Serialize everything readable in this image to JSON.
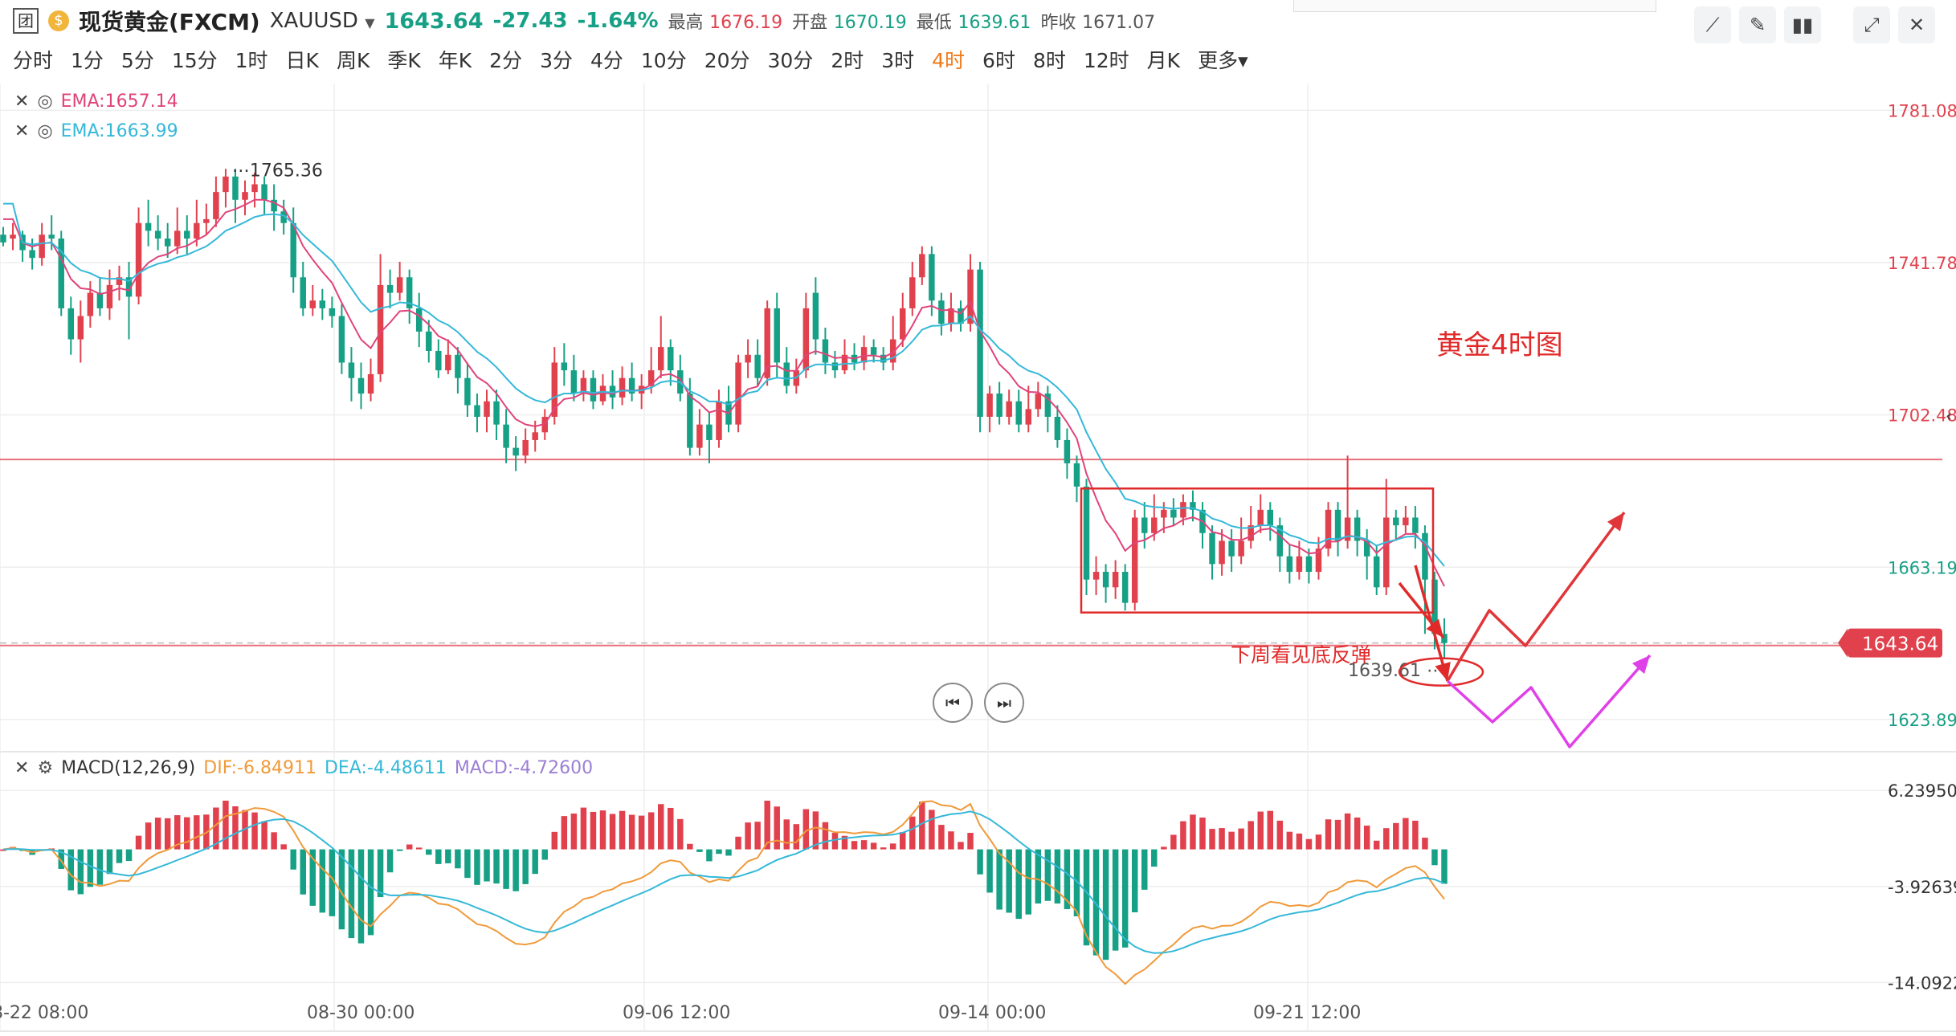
{
  "header": {
    "logo_char": "团",
    "coin_char": "$",
    "title": "现货黄金(FXCM)",
    "symbol": "XAUUSD",
    "last": "1643.64",
    "change": "-27.43",
    "change_pct": "-1.64%",
    "high_label": "最高",
    "high": "1676.19",
    "open_label": "开盘",
    "open": "1670.19",
    "low_label": "最低",
    "low": "1639.61",
    "prev_label": "昨收",
    "prev": "1671.07"
  },
  "timeframes": [
    "分时",
    "1分",
    "5分",
    "15分",
    "1时",
    "日K",
    "周K",
    "季K",
    "年K",
    "2分",
    "3分",
    "4分",
    "10分",
    "20分",
    "30分",
    "2时",
    "3时",
    "4时",
    "6时",
    "8时",
    "12时",
    "月K",
    "更多▾"
  ],
  "active_timeframe": "4时",
  "tools": {
    "icons": [
      "chart-line-icon",
      "pencil-icon",
      "candle-icon",
      "expand-icon",
      "close-icon"
    ]
  },
  "legend": {
    "ema1": "EMA:1657.14",
    "ema2": "EMA:1663.99",
    "macd_name": "MACD(12,26,9)",
    "dif": "DIF:-6.84911",
    "dea": "DEA:-4.48611",
    "macd": "MACD:-4.72600"
  },
  "annotations": {
    "chart_title": "黄金4时图",
    "note": "下周看见底反弹"
  },
  "colors": {
    "up": "#e0414d",
    "down": "#16a085",
    "ema_fast": "#e0447a",
    "ema_slow": "#35b8d8",
    "dif": "#f09a3a",
    "dea": "#35b8d8",
    "accent": "#f07b1a"
  },
  "chart_data": {
    "type": "candlestick",
    "price_axis": {
      "ticks": [
        1781.08,
        1741.78,
        1702.48,
        1663.19,
        1623.89
      ],
      "tick_labels": [
        "1781.08",
        "1741.78",
        "1702.48",
        "1663.19",
        "1623.89"
      ],
      "ylim": [
        1616,
        1788
      ]
    },
    "last_price": "1643.64",
    "high_marker": {
      "value": 1765.36,
      "label": "1765.36"
    },
    "low_marker": {
      "value": 1639.61,
      "label": "1639.61"
    },
    "macd_axis": {
      "ticks": [
        6.2395,
        -3.92639,
        -14.09228
      ],
      "tick_labels": [
        "6.23950",
        "-3.92639",
        "-14.09228"
      ],
      "ylim": [
        -15,
        10
      ]
    },
    "x_axis": {
      "labels": [
        "8-22 08:00",
        "08-30 00:00",
        "09-06 12:00",
        "09-14 00:00",
        "09-21 12:00"
      ]
    },
    "horizontal_lines": [
      1691.0,
      1643.0
    ],
    "candles": [
      [
        1749,
        1747,
        1751,
        1746
      ],
      [
        1748,
        1749,
        1752,
        1745
      ],
      [
        1749,
        1745,
        1750,
        1742
      ],
      [
        1745,
        1743,
        1748,
        1740
      ],
      [
        1743,
        1749,
        1752,
        1741
      ],
      [
        1749,
        1748,
        1754,
        1745
      ],
      [
        1748,
        1730,
        1750,
        1728
      ],
      [
        1730,
        1722,
        1733,
        1718
      ],
      [
        1722,
        1728,
        1732,
        1716
      ],
      [
        1728,
        1734,
        1737,
        1725
      ],
      [
        1734,
        1730,
        1738,
        1728
      ],
      [
        1730,
        1736,
        1740,
        1727
      ],
      [
        1736,
        1738,
        1741,
        1732
      ],
      [
        1738,
        1733,
        1742,
        1722
      ],
      [
        1733,
        1752,
        1756,
        1731
      ],
      [
        1752,
        1750,
        1758,
        1746
      ],
      [
        1750,
        1748,
        1754,
        1745
      ],
      [
        1748,
        1746,
        1752,
        1743
      ],
      [
        1746,
        1750,
        1756,
        1744
      ],
      [
        1750,
        1748,
        1754,
        1744
      ],
      [
        1748,
        1752,
        1758,
        1746
      ],
      [
        1752,
        1753,
        1757,
        1749
      ],
      [
        1753,
        1760,
        1764,
        1751
      ],
      [
        1760,
        1764,
        1766,
        1756
      ],
      [
        1764,
        1758,
        1766,
        1752
      ],
      [
        1758,
        1760,
        1763,
        1754
      ],
      [
        1760,
        1762,
        1765,
        1756
      ],
      [
        1762,
        1758,
        1764,
        1754
      ],
      [
        1758,
        1755,
        1762,
        1750
      ],
      [
        1755,
        1752,
        1758,
        1749
      ],
      [
        1752,
        1738,
        1756,
        1734
      ],
      [
        1738,
        1730,
        1742,
        1728
      ],
      [
        1730,
        1732,
        1736,
        1728
      ],
      [
        1732,
        1730,
        1735,
        1727
      ],
      [
        1730,
        1728,
        1733,
        1725
      ],
      [
        1728,
        1716,
        1731,
        1713
      ],
      [
        1716,
        1712,
        1720,
        1706
      ],
      [
        1712,
        1708,
        1716,
        1704
      ],
      [
        1708,
        1713,
        1717,
        1706
      ],
      [
        1713,
        1736,
        1744,
        1711
      ],
      [
        1736,
        1734,
        1740,
        1730
      ],
      [
        1734,
        1738,
        1742,
        1732
      ],
      [
        1738,
        1730,
        1740,
        1726
      ],
      [
        1730,
        1724,
        1734,
        1720
      ],
      [
        1724,
        1719,
        1727,
        1716
      ],
      [
        1719,
        1714,
        1722,
        1712
      ],
      [
        1714,
        1718,
        1722,
        1713
      ],
      [
        1718,
        1712,
        1720,
        1708
      ],
      [
        1712,
        1705,
        1716,
        1702
      ],
      [
        1705,
        1702,
        1708,
        1698
      ],
      [
        1702,
        1706,
        1709,
        1698
      ],
      [
        1706,
        1700,
        1709,
        1696
      ],
      [
        1700,
        1694,
        1704,
        1690
      ],
      [
        1694,
        1692,
        1697,
        1688
      ],
      [
        1692,
        1696,
        1699,
        1690
      ],
      [
        1696,
        1698,
        1701,
        1693
      ],
      [
        1698,
        1702,
        1704,
        1696
      ],
      [
        1702,
        1716,
        1720,
        1700
      ],
      [
        1716,
        1714,
        1721,
        1710
      ],
      [
        1714,
        1708,
        1718,
        1706
      ],
      [
        1708,
        1712,
        1714,
        1706
      ],
      [
        1712,
        1706,
        1714,
        1704
      ],
      [
        1706,
        1710,
        1713,
        1705
      ],
      [
        1710,
        1707,
        1714,
        1704
      ],
      [
        1707,
        1712,
        1715,
        1705
      ],
      [
        1712,
        1708,
        1716,
        1706
      ],
      [
        1708,
        1710,
        1713,
        1704
      ],
      [
        1710,
        1714,
        1720,
        1708
      ],
      [
        1714,
        1720,
        1728,
        1712
      ],
      [
        1720,
        1714,
        1722,
        1710
      ],
      [
        1714,
        1708,
        1718,
        1706
      ],
      [
        1708,
        1694,
        1712,
        1692
      ],
      [
        1694,
        1700,
        1704,
        1692
      ],
      [
        1700,
        1696,
        1703,
        1690
      ],
      [
        1696,
        1706,
        1709,
        1694
      ],
      [
        1706,
        1700,
        1710,
        1698
      ],
      [
        1700,
        1716,
        1718,
        1698
      ],
      [
        1716,
        1718,
        1722,
        1712
      ],
      [
        1718,
        1712,
        1722,
        1710
      ],
      [
        1712,
        1730,
        1732,
        1710
      ],
      [
        1730,
        1716,
        1734,
        1712
      ],
      [
        1716,
        1710,
        1720,
        1708
      ],
      [
        1710,
        1714,
        1717,
        1708
      ],
      [
        1714,
        1730,
        1734,
        1712
      ],
      [
        1734,
        1722,
        1738,
        1718
      ],
      [
        1722,
        1716,
        1725,
        1713
      ],
      [
        1716,
        1714,
        1719,
        1712
      ],
      [
        1714,
        1718,
        1722,
        1713
      ],
      [
        1718,
        1716,
        1721,
        1714
      ],
      [
        1716,
        1720,
        1723,
        1714
      ],
      [
        1720,
        1718,
        1722,
        1716
      ],
      [
        1718,
        1716,
        1720,
        1714
      ],
      [
        1716,
        1722,
        1728,
        1714
      ],
      [
        1722,
        1730,
        1734,
        1720
      ],
      [
        1730,
        1738,
        1742,
        1728
      ],
      [
        1738,
        1744,
        1746,
        1736
      ],
      [
        1744,
        1732,
        1746,
        1728
      ],
      [
        1732,
        1726,
        1734,
        1723
      ],
      [
        1726,
        1730,
        1734,
        1724
      ],
      [
        1730,
        1726,
        1732,
        1724
      ],
      [
        1726,
        1740,
        1744,
        1724
      ],
      [
        1740,
        1702,
        1742,
        1698
      ],
      [
        1702,
        1708,
        1710,
        1698
      ],
      [
        1708,
        1702,
        1711,
        1700
      ],
      [
        1702,
        1706,
        1709,
        1700
      ],
      [
        1706,
        1700,
        1709,
        1698
      ],
      [
        1700,
        1704,
        1710,
        1698
      ],
      [
        1704,
        1708,
        1711,
        1702
      ],
      [
        1708,
        1702,
        1710,
        1698
      ],
      [
        1702,
        1696,
        1705,
        1694
      ],
      [
        1696,
        1690,
        1699,
        1686
      ],
      [
        1690,
        1684,
        1692,
        1680
      ],
      [
        1684,
        1660,
        1686,
        1656
      ],
      [
        1660,
        1662,
        1666,
        1656
      ],
      [
        1662,
        1658,
        1664,
        1654
      ],
      [
        1658,
        1662,
        1665,
        1655
      ],
      [
        1662,
        1654,
        1664,
        1652
      ],
      [
        1654,
        1676,
        1678,
        1652
      ],
      [
        1676,
        1672,
        1680,
        1668
      ],
      [
        1672,
        1676,
        1682,
        1670
      ],
      [
        1676,
        1678,
        1680,
        1672
      ],
      [
        1678,
        1676,
        1681,
        1674
      ],
      [
        1676,
        1680,
        1682,
        1674
      ],
      [
        1680,
        1678,
        1683,
        1675
      ],
      [
        1678,
        1672,
        1680,
        1668
      ],
      [
        1672,
        1664,
        1674,
        1660
      ],
      [
        1664,
        1670,
        1673,
        1661
      ],
      [
        1670,
        1666,
        1673,
        1662
      ],
      [
        1666,
        1670,
        1676,
        1664
      ],
      [
        1670,
        1674,
        1679,
        1668
      ],
      [
        1674,
        1678,
        1682,
        1672
      ],
      [
        1678,
        1674,
        1680,
        1670
      ],
      [
        1674,
        1666,
        1676,
        1662
      ],
      [
        1666,
        1662,
        1669,
        1659
      ],
      [
        1662,
        1666,
        1670,
        1660
      ],
      [
        1666,
        1662,
        1668,
        1659
      ],
      [
        1662,
        1668,
        1671,
        1660
      ],
      [
        1668,
        1678,
        1680,
        1666
      ],
      [
        1678,
        1670,
        1680,
        1666
      ],
      [
        1670,
        1676,
        1692,
        1668
      ],
      [
        1676,
        1670,
        1678,
        1666
      ],
      [
        1670,
        1666,
        1673,
        1660
      ],
      [
        1666,
        1658,
        1669,
        1656
      ],
      [
        1658,
        1676,
        1686,
        1656
      ],
      [
        1676,
        1674,
        1678,
        1670
      ],
      [
        1674,
        1676,
        1679,
        1672
      ],
      [
        1676,
        1672,
        1679,
        1668
      ],
      [
        1672,
        1660,
        1674,
        1646
      ],
      [
        1660,
        1646,
        1662,
        1642
      ],
      [
        1646,
        1643.64,
        1650,
        1639.61
      ]
    ],
    "ema_fast_label": "EMA:1657.14",
    "ema_slow_label": "EMA:1663.99"
  }
}
